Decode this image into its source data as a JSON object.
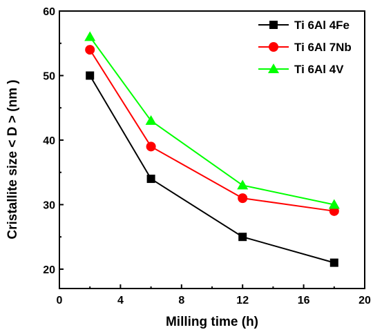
{
  "chart_data": {
    "type": "line",
    "title": "",
    "xlabel": "Milling time (h)",
    "ylabel": "Cristallite size < D >  (nm )",
    "xlim": [
      0,
      20
    ],
    "ylim": [
      17,
      60
    ],
    "x_ticks": [
      0,
      4,
      8,
      12,
      16,
      20
    ],
    "y_ticks": [
      20,
      30,
      40,
      50,
      60
    ],
    "grid": false,
    "legend_position": "top-right",
    "x": [
      2,
      6,
      12,
      18
    ],
    "series": [
      {
        "name": "Ti 6Al 4Fe",
        "values": [
          50,
          34,
          25,
          21
        ],
        "color": "#000000",
        "marker": "square"
      },
      {
        "name": "Ti 6Al 7Nb",
        "values": [
          54,
          39,
          31,
          29
        ],
        "color": "#ff0000",
        "marker": "circle"
      },
      {
        "name": "Ti 6Al 4V",
        "values": [
          56,
          43,
          33,
          30
        ],
        "color": "#00ff00",
        "marker": "triangle"
      }
    ]
  }
}
